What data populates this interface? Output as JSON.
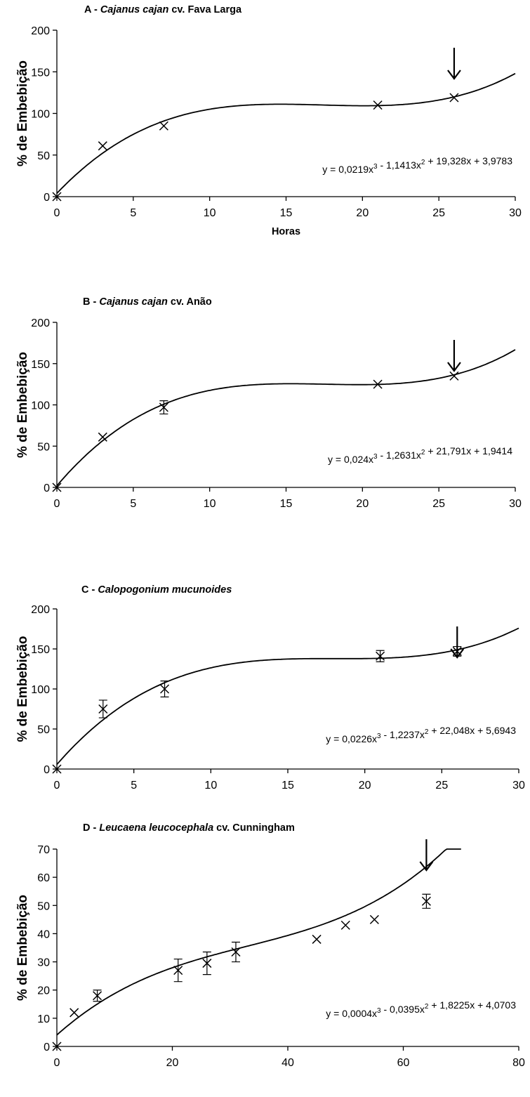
{
  "chart_data": [
    {
      "type": "scatter",
      "title_prefix": "A - ",
      "title_italic": "Cajanus cajan",
      "title_suffix": " cv. Fava Larga",
      "ylabel": "% de Embebição",
      "xlabel": "Horas",
      "xlim": [
        0,
        30
      ],
      "ylim": [
        0,
        200
      ],
      "xticks": [
        0,
        5,
        10,
        15,
        20,
        25,
        30
      ],
      "yticks": [
        0,
        50,
        100,
        150,
        200
      ],
      "points": [
        {
          "x": 0,
          "y": 0
        },
        {
          "x": 3,
          "y": 61
        },
        {
          "x": 7,
          "y": 85
        },
        {
          "x": 21,
          "y": 110
        },
        {
          "x": 26,
          "y": 119
        }
      ],
      "arrow_x": 26,
      "equation_html": "y = 0,0219x<tspan baseline-shift=\"super\" font-size=\"10\">3</tspan> - 1,1413x<tspan baseline-shift=\"super\" font-size=\"10\">2</tspan> + 19,328x + 3,9783",
      "equation": "y = 0,0219x3 - 1,1413x2 + 19,328x + 3,9783",
      "coef": [
        0.0219,
        -1.1413,
        19.328,
        3.9783
      ]
    },
    {
      "type": "scatter",
      "title_prefix": "B - ",
      "title_italic": "Cajanus cajan",
      "title_suffix": " cv. Anão",
      "ylabel": "% de Embebição",
      "xlabel": "",
      "xlim": [
        0,
        30
      ],
      "ylim": [
        0,
        200
      ],
      "xticks": [
        0,
        5,
        10,
        15,
        20,
        25,
        30
      ],
      "yticks": [
        0,
        50,
        100,
        150,
        200
      ],
      "points": [
        {
          "x": 0,
          "y": 0
        },
        {
          "x": 3,
          "y": 61
        },
        {
          "x": 7,
          "y": 97,
          "err": 8
        },
        {
          "x": 21,
          "y": 125
        },
        {
          "x": 26,
          "y": 135
        }
      ],
      "arrow_x": 26,
      "equation": "y = 0,024x3 - 1,2631x2 + 21,791x + 1,9414",
      "coef": [
        0.024,
        -1.2631,
        21.791,
        1.9414
      ]
    },
    {
      "type": "scatter",
      "title_prefix": "C - ",
      "title_italic": "Calopogonium mucunoides",
      "title_suffix": "",
      "ylabel": "% de Embebição",
      "xlabel": "",
      "xlim": [
        0,
        30
      ],
      "ylim": [
        0,
        200
      ],
      "xticks": [
        0,
        5,
        10,
        15,
        20,
        25,
        30
      ],
      "yticks": [
        0,
        50,
        100,
        150,
        200
      ],
      "points": [
        {
          "x": 0,
          "y": 0
        },
        {
          "x": 3,
          "y": 75,
          "err": 11
        },
        {
          "x": 7,
          "y": 100,
          "err": 10
        },
        {
          "x": 21,
          "y": 141,
          "err": 7
        },
        {
          "x": 26,
          "y": 147,
          "err": 6
        }
      ],
      "arrow_x": 26,
      "equation": "y = 0,0226x3 - 1,2237x2 + 22,048x + 5,6943",
      "coef": [
        0.0226,
        -1.2237,
        22.048,
        5.6943
      ]
    },
    {
      "type": "scatter",
      "title_prefix": "D - ",
      "title_italic": "Leucaena leucocephala",
      "title_suffix": " cv. Cunningham",
      "ylabel": "% de Embebição",
      "xlabel": "",
      "xlim": [
        0,
        80
      ],
      "ylim": [
        0,
        70
      ],
      "xticks": [
        0,
        20,
        40,
        60,
        80
      ],
      "yticks": [
        0,
        10,
        20,
        30,
        40,
        50,
        60,
        70
      ],
      "points": [
        {
          "x": 0,
          "y": 0
        },
        {
          "x": 3,
          "y": 12
        },
        {
          "x": 7,
          "y": 18,
          "err": 2
        },
        {
          "x": 21,
          "y": 27,
          "err": 4
        },
        {
          "x": 26,
          "y": 29.5,
          "err": 4
        },
        {
          "x": 31,
          "y": 33.5,
          "err": 3.5
        },
        {
          "x": 45,
          "y": 38
        },
        {
          "x": 50,
          "y": 43
        },
        {
          "x": 55,
          "y": 45
        },
        {
          "x": 64,
          "y": 51.5,
          "err": 2.5
        }
      ],
      "arrow_x": 64,
      "equation": "y = 0,0004x3 - 0,0395x2 + 1,8225x + 4,0703",
      "coef": [
        0.0004,
        -0.0395,
        1.8225,
        4.0703
      ]
    }
  ]
}
